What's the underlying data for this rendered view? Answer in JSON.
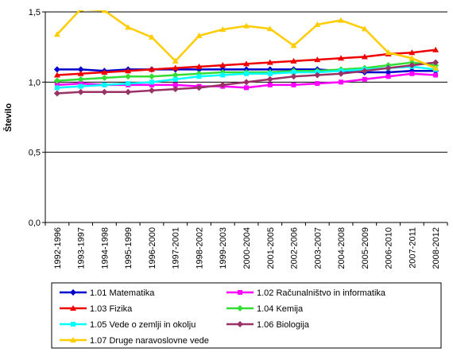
{
  "chart_data": {
    "type": "line",
    "y_label": "Število",
    "categories": [
      "1992-1996",
      "1993-1997",
      "1994-1998",
      "1995-1999",
      "1996-2000",
      "1997-2001",
      "1998-2002",
      "1999-2003",
      "2000-2004",
      "2001-2005",
      "2002-2006",
      "2003-2007",
      "2004-2008",
      "2005-2009",
      "2006-2010",
      "2007-2011",
      "2008-2012"
    ],
    "ylim": [
      0,
      1.5
    ],
    "yticks": [
      {
        "value": 0,
        "label": "0,0"
      },
      {
        "value": 0.5,
        "label": "0,5"
      },
      {
        "value": 1,
        "label": "1,0"
      },
      {
        "value": 1.5,
        "label": "1,5"
      }
    ],
    "grid": true,
    "legend": "bottom",
    "series": [
      {
        "name": "1.01 Matematika",
        "color": "#0000cc",
        "marker": "diamond",
        "values": [
          1.09,
          1.09,
          1.08,
          1.09,
          1.09,
          1.09,
          1.09,
          1.09,
          1.09,
          1.09,
          1.09,
          1.09,
          1.08,
          1.07,
          1.07,
          1.08,
          1.08
        ]
      },
      {
        "name": "1.02 Računalništvo in informatika",
        "color": "#ff00ff",
        "marker": "square",
        "values": [
          0.98,
          0.99,
          0.98,
          0.98,
          0.98,
          0.98,
          0.97,
          0.97,
          0.96,
          0.98,
          0.98,
          0.99,
          1.0,
          1.02,
          1.04,
          1.06,
          1.05
        ]
      },
      {
        "name": "1.03 Fizika",
        "color": "#ee0000",
        "marker": "triangle",
        "values": [
          1.05,
          1.06,
          1.07,
          1.08,
          1.09,
          1.1,
          1.11,
          1.12,
          1.13,
          1.14,
          1.15,
          1.16,
          1.17,
          1.18,
          1.2,
          1.21,
          1.23
        ]
      },
      {
        "name": "1.04 Kemija",
        "color": "#33dd33",
        "marker": "diamond",
        "values": [
          1.01,
          1.02,
          1.03,
          1.04,
          1.04,
          1.05,
          1.06,
          1.07,
          1.07,
          1.07,
          1.08,
          1.08,
          1.09,
          1.1,
          1.12,
          1.14,
          1.12
        ]
      },
      {
        "name": "1.05 Vede o zemlji in okolju",
        "color": "#00ffff",
        "marker": "square",
        "values": [
          0.96,
          0.97,
          0.98,
          0.99,
          1.0,
          1.02,
          1.04,
          1.05,
          1.06,
          1.06,
          1.07,
          1.07,
          1.08,
          1.09,
          1.1,
          1.11,
          1.09
        ]
      },
      {
        "name": "1.06 Biologija",
        "color": "#993366",
        "marker": "diamond",
        "values": [
          0.92,
          0.93,
          0.93,
          0.93,
          0.94,
          0.95,
          0.96,
          0.98,
          1.0,
          1.02,
          1.04,
          1.05,
          1.06,
          1.08,
          1.1,
          1.12,
          1.14
        ]
      },
      {
        "name": "1.07 Druge naravoslovne vede",
        "color": "#ffcc00",
        "marker": "triangle",
        "values": [
          1.34,
          1.52,
          1.51,
          1.39,
          1.32,
          1.15,
          1.33,
          1.375,
          1.4,
          1.38,
          1.26,
          1.41,
          1.44,
          1.38,
          1.21,
          1.17,
          1.1
        ]
      }
    ]
  }
}
